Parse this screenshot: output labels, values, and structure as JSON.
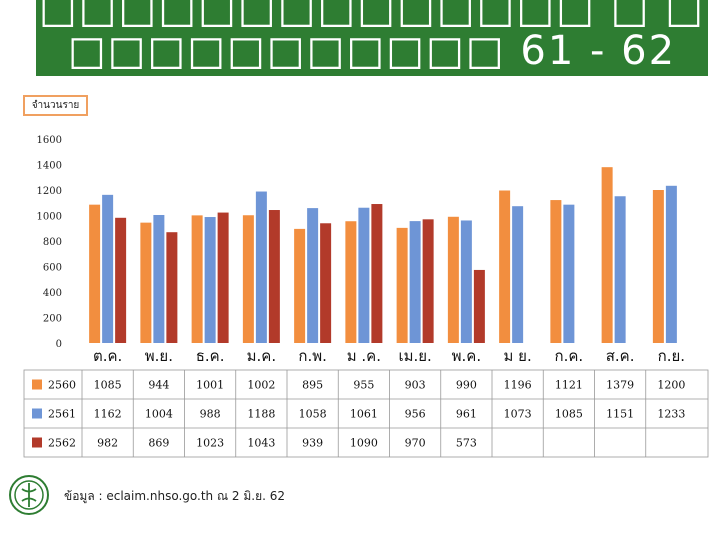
{
  "header": {
    "title_line_1": "□□□□□□□□□□□□□□ □ □",
    "title_line_2": "□□□□□□□□□□□ 61 - 62"
  },
  "chart_data": {
    "type": "bar",
    "ylabel": "จำนวนราย",
    "ylim": [
      0,
      1600
    ],
    "yticks": [
      0,
      200,
      400,
      600,
      800,
      1000,
      1200,
      1400,
      1600
    ],
    "categories": [
      "ต.ค.",
      "พ.ย.",
      "ธ.ค.",
      "ม.ค.",
      "ก.พ.",
      "มี.ค.",
      "เม.ย.",
      "พ.ค.",
      "มิ.ย.",
      "ก.ค.",
      "ส.ค.",
      "ก.ย."
    ],
    "category_labels_shown": [
      "ต.ค.",
      "พ.ย.",
      "ธ.ค.",
      "ม.ค.",
      "ก.พ.",
      "ม .ค.",
      "เม.ย.",
      "พ.ค.",
      "ม ย.",
      "ก.ค.",
      "ส.ค.",
      "ก.ย."
    ],
    "series": [
      {
        "name": "2560",
        "color": "#f28e3f",
        "values": [
          1085,
          944,
          1001,
          1002,
          895,
          955,
          903,
          990,
          1196,
          1121,
          1379,
          1200
        ]
      },
      {
        "name": "2561",
        "color": "#6e95d6",
        "values": [
          1162,
          1004,
          988,
          1188,
          1058,
          1061,
          956,
          961,
          1073,
          1085,
          1151,
          1233
        ]
      },
      {
        "name": "2562",
        "color": "#b23a2a",
        "values": [
          982,
          869,
          1023,
          1043,
          939,
          1090,
          970,
          573,
          null,
          null,
          null,
          null
        ]
      }
    ],
    "grid": false,
    "legend": "table-bottom"
  },
  "footer": {
    "source": "ข้อมูล : eclaim.nhso.go.th ณ 2 มิ.ย. 62"
  },
  "logo": {
    "icon": "ministry-seal-icon",
    "color": "#2e7d32"
  }
}
